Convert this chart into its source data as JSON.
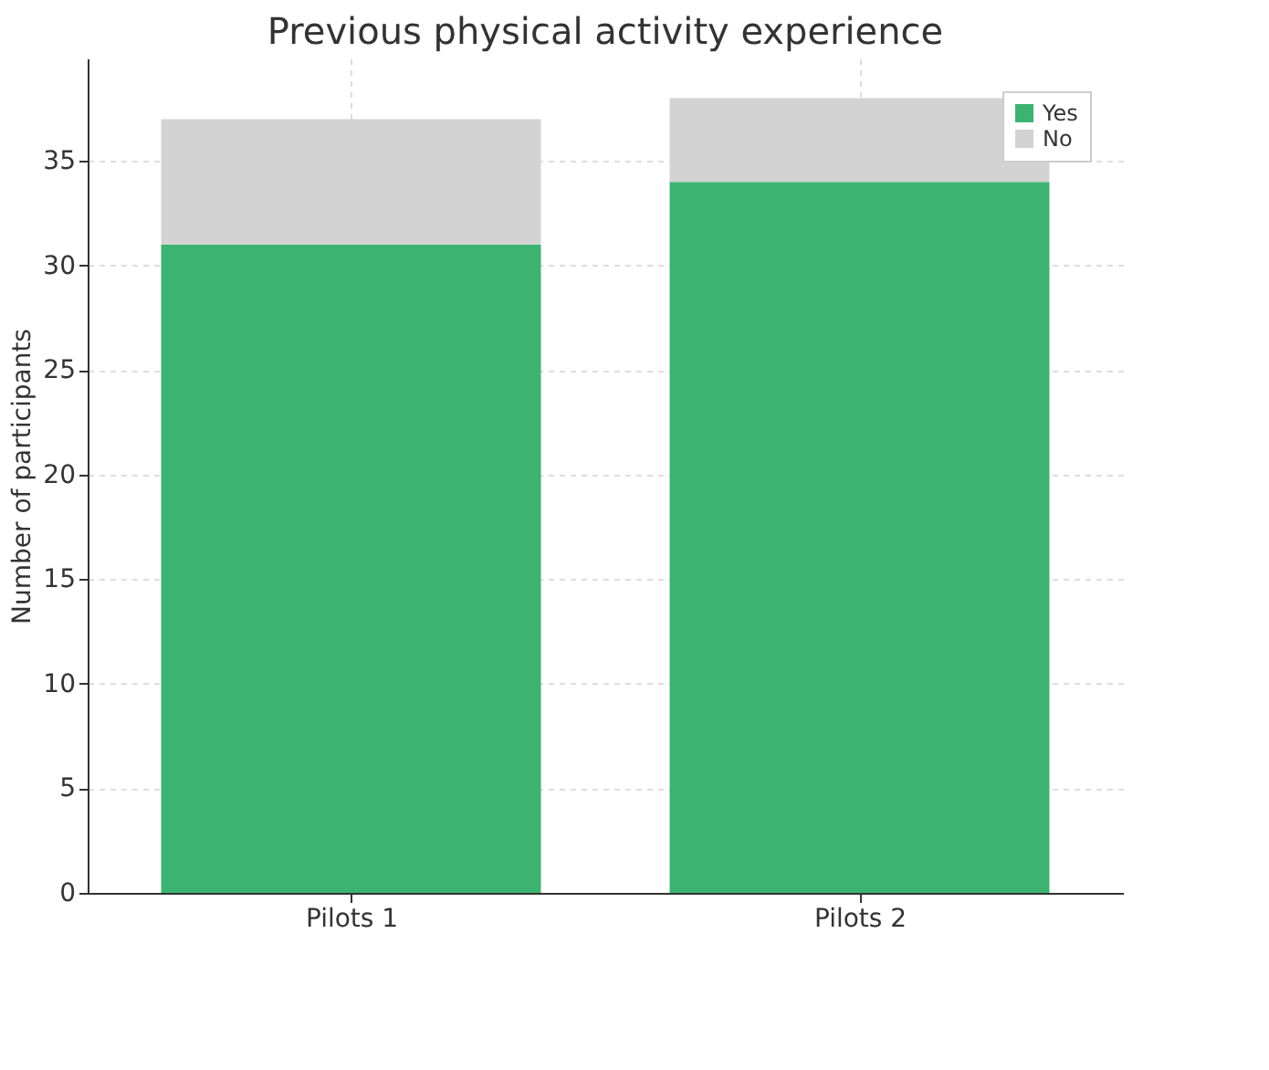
{
  "chart_data": {
    "type": "bar",
    "title": "Previous physical activity experience",
    "ylabel": "Number of participants",
    "categories": [
      "Pilots 1",
      "Pilots 2"
    ],
    "series": [
      {
        "name": "Yes",
        "color": "#3cb371",
        "values": [
          31,
          34
        ]
      },
      {
        "name": "No",
        "color": "#d3d3d3",
        "values": [
          6,
          4
        ]
      }
    ],
    "stacked": true,
    "ylim": [
      0,
      39.9
    ],
    "yticks": [
      0,
      5,
      10,
      15,
      20,
      25,
      30,
      35
    ],
    "grid": true,
    "legend": "top right"
  }
}
